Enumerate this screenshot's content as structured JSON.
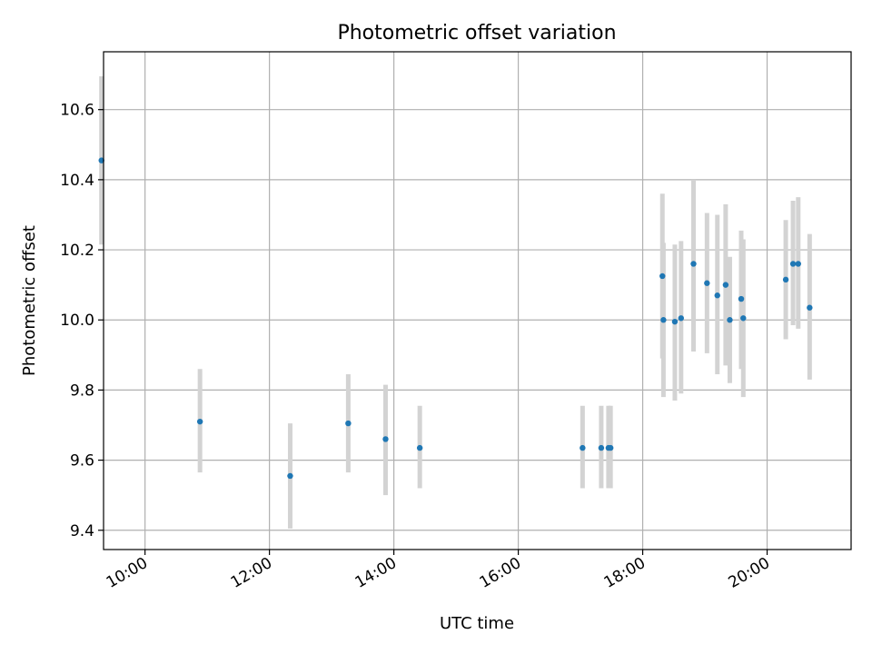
{
  "chart_data": {
    "type": "scatter",
    "title": "Photometric offset variation",
    "xlabel": "UTC time",
    "ylabel": "Photometric offset",
    "x_type": "time",
    "xlim": [
      "09:20",
      "21:21"
    ],
    "ylim": [
      9.345,
      10.765
    ],
    "x_ticks": [
      "10:00",
      "12:00",
      "14:00",
      "16:00",
      "18:00",
      "20:00"
    ],
    "y_ticks": [
      9.4,
      9.6,
      9.8,
      10.0,
      10.2,
      10.4,
      10.6
    ],
    "y_tick_labels": [
      "9.4",
      "9.6",
      "9.8",
      "10.0",
      "10.2",
      "10.4",
      "10.6"
    ],
    "grid": true,
    "legend": "none",
    "marker_color": "#1f77b4",
    "errorbar_color": "#d3d3d3",
    "series": [
      {
        "points": [
          {
            "x": "09:18",
            "y": 10.455,
            "ylow": 10.215,
            "yhigh": 10.695
          },
          {
            "x": "10:53",
            "y": 9.71,
            "ylow": 9.565,
            "yhigh": 9.86
          },
          {
            "x": "12:20",
            "y": 9.555,
            "ylow": 9.405,
            "yhigh": 9.705
          },
          {
            "x": "13:16",
            "y": 9.705,
            "ylow": 9.565,
            "yhigh": 9.845
          },
          {
            "x": "13:52",
            "y": 9.66,
            "ylow": 9.5,
            "yhigh": 9.815
          },
          {
            "x": "14:25",
            "y": 9.635,
            "ylow": 9.52,
            "yhigh": 9.755
          },
          {
            "x": "17:02",
            "y": 9.635,
            "ylow": 9.52,
            "yhigh": 9.755
          },
          {
            "x": "17:20",
            "y": 9.635,
            "ylow": 9.52,
            "yhigh": 9.755
          },
          {
            "x": "17:27",
            "y": 9.635,
            "ylow": 9.52,
            "yhigh": 9.755
          },
          {
            "x": "17:29",
            "y": 9.635,
            "ylow": 9.52,
            "yhigh": 9.755
          },
          {
            "x": "18:19",
            "y": 10.125,
            "ylow": 9.89,
            "yhigh": 10.36
          },
          {
            "x": "18:20",
            "y": 10.0,
            "ylow": 9.78,
            "yhigh": 10.22
          },
          {
            "x": "18:31",
            "y": 9.995,
            "ylow": 9.77,
            "yhigh": 10.215
          },
          {
            "x": "18:37",
            "y": 10.005,
            "ylow": 9.79,
            "yhigh": 10.225
          },
          {
            "x": "18:49",
            "y": 10.16,
            "ylow": 9.91,
            "yhigh": 10.4
          },
          {
            "x": "19:02",
            "y": 10.105,
            "ylow": 9.905,
            "yhigh": 10.305
          },
          {
            "x": "19:12",
            "y": 10.07,
            "ylow": 9.845,
            "yhigh": 10.3
          },
          {
            "x": "19:20",
            "y": 10.1,
            "ylow": 9.87,
            "yhigh": 10.33
          },
          {
            "x": "19:24",
            "y": 10.0,
            "ylow": 9.82,
            "yhigh": 10.18
          },
          {
            "x": "19:35",
            "y": 10.06,
            "ylow": 9.86,
            "yhigh": 10.255
          },
          {
            "x": "19:37",
            "y": 10.005,
            "ylow": 9.78,
            "yhigh": 10.23
          },
          {
            "x": "20:18",
            "y": 10.115,
            "ylow": 9.945,
            "yhigh": 10.285
          },
          {
            "x": "20:25",
            "y": 10.16,
            "ylow": 9.985,
            "yhigh": 10.34
          },
          {
            "x": "20:30",
            "y": 10.16,
            "ylow": 9.975,
            "yhigh": 10.35
          },
          {
            "x": "20:41",
            "y": 10.035,
            "ylow": 9.83,
            "yhigh": 10.245
          }
        ]
      }
    ]
  }
}
